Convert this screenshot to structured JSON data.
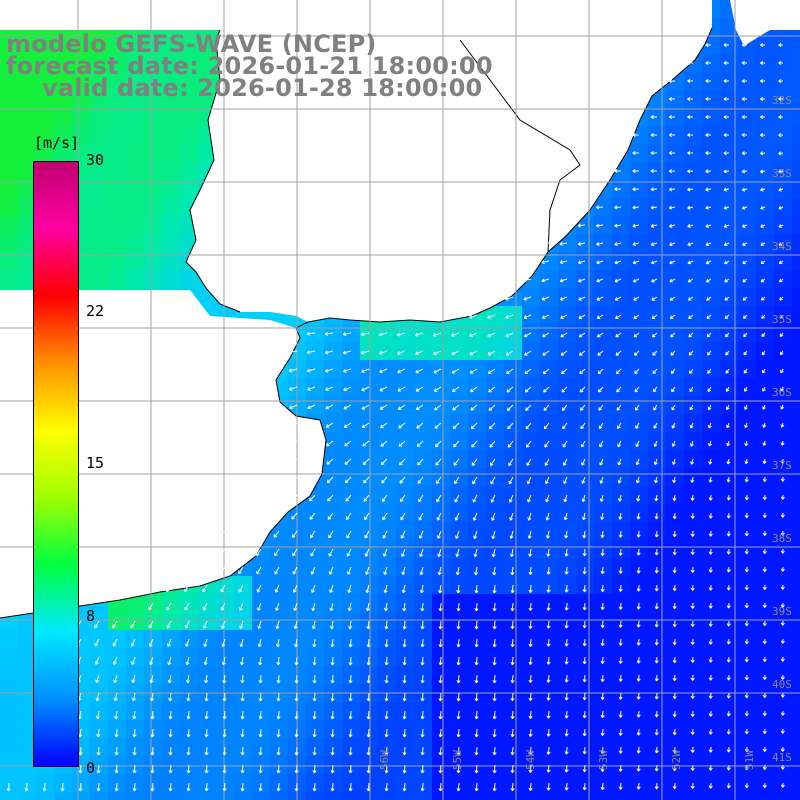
{
  "title": {
    "line1": "modelo GEFS-WAVE (NCEP)",
    "line2": "forecast date: 2026-01-21 18:00:00",
    "line3": "valid date: 2026-01-28 18:00:00"
  },
  "colorbar": {
    "unit": "[m/s]",
    "ticks": [
      "30",
      "22",
      "15",
      "8",
      "0"
    ],
    "colors": [
      "#0000ff",
      "#0090ff",
      "#00e8ff",
      "#00ff40",
      "#a0ff00",
      "#ffff00",
      "#ff9000",
      "#ff0000",
      "#ff00a0",
      "#c00070"
    ]
  },
  "lat_labels": [
    "32S",
    "33S",
    "34S",
    "35S",
    "36S",
    "37S",
    "38S",
    "39S",
    "40S",
    "41S"
  ],
  "lon_labels": [
    "56W",
    "55W",
    "54W",
    "53W",
    "52W",
    "51W"
  ],
  "palette": {
    "land": "#ffffff",
    "grid": "#a0a0a0",
    "coast": "#000000",
    "arrow": "#ffffff",
    "title": "#808080"
  }
}
